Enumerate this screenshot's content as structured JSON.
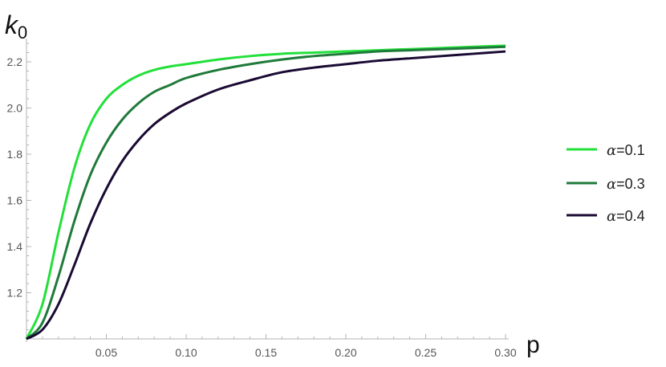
{
  "chart_data": {
    "type": "line",
    "xlabel": "p",
    "ylabel": "k",
    "ylabel_subscript": "0",
    "xlim": [
      0,
      0.3
    ],
    "ylim": [
      1.0,
      2.28
    ],
    "x_ticks": [
      0.05,
      0.1,
      0.15,
      0.2,
      0.25,
      0.3
    ],
    "x_tick_labels": [
      "0.05",
      "0.10",
      "0.15",
      "0.20",
      "0.25",
      "0.30"
    ],
    "y_ticks": [
      1.2,
      1.4,
      1.6,
      1.8,
      2.0,
      2.2
    ],
    "y_tick_labels": [
      "1.2",
      "1.4",
      "1.6",
      "1.8",
      "2.0",
      "2.2"
    ],
    "grid": false,
    "legend_position": "right",
    "x": [
      0.0,
      0.01,
      0.02,
      0.03,
      0.04,
      0.05,
      0.06,
      0.07,
      0.08,
      0.09,
      0.1,
      0.12,
      0.14,
      0.16,
      0.18,
      0.2,
      0.22,
      0.24,
      0.26,
      0.28,
      0.3
    ],
    "series": [
      {
        "name_symbol": "α",
        "name_value": "=0.1",
        "color": "#22e03a",
        "values": [
          1.0,
          1.15,
          1.46,
          1.74,
          1.93,
          2.04,
          2.1,
          2.14,
          2.165,
          2.18,
          2.19,
          2.21,
          2.225,
          2.235,
          2.24,
          2.245,
          2.25,
          2.255,
          2.26,
          2.265,
          2.27
        ]
      },
      {
        "name_symbol": "α",
        "name_value": "=0.3",
        "color": "#1f7a3a",
        "values": [
          1.0,
          1.07,
          1.27,
          1.51,
          1.71,
          1.85,
          1.95,
          2.02,
          2.07,
          2.1,
          2.13,
          2.165,
          2.19,
          2.21,
          2.225,
          2.235,
          2.245,
          2.25,
          2.255,
          2.26,
          2.265
        ]
      },
      {
        "name_symbol": "α",
        "name_value": "=0.4",
        "color": "#1a0a33",
        "values": [
          1.0,
          1.04,
          1.15,
          1.32,
          1.5,
          1.65,
          1.77,
          1.86,
          1.93,
          1.98,
          2.02,
          2.08,
          2.12,
          2.155,
          2.175,
          2.19,
          2.205,
          2.215,
          2.225,
          2.235,
          2.245
        ]
      }
    ]
  }
}
